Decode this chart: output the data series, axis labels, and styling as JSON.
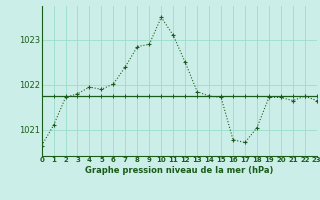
{
  "title": "Graphe pression niveau de la mer (hPa)",
  "background_color": "#cceee8",
  "grid_color": "#99ddcc",
  "line_color": "#1a5c1a",
  "x_values": [
    0,
    1,
    2,
    3,
    4,
    5,
    6,
    7,
    8,
    9,
    10,
    11,
    12,
    13,
    14,
    15,
    16,
    17,
    18,
    19,
    20,
    21,
    22,
    23
  ],
  "line1_values": [
    1020.65,
    1021.1,
    1021.72,
    1021.8,
    1021.95,
    1021.9,
    1022.02,
    1022.4,
    1022.85,
    1022.9,
    1023.5,
    1023.1,
    1022.5,
    1021.85,
    1021.75,
    1021.72,
    1020.78,
    1020.72,
    1021.05,
    1021.72,
    1021.72,
    1021.65,
    1021.75,
    1021.65
  ],
  "line2_values": [
    1021.75,
    1021.75,
    1021.75,
    1021.75,
    1021.75,
    1021.75,
    1021.75,
    1021.75,
    1021.75,
    1021.75,
    1021.75,
    1021.75,
    1021.75,
    1021.75,
    1021.75,
    1021.75,
    1021.75,
    1021.75,
    1021.75,
    1021.75,
    1021.75,
    1021.75,
    1021.75,
    1021.75
  ],
  "ylim": [
    1020.42,
    1023.75
  ],
  "yticks": [
    1021,
    1022,
    1023
  ],
  "xlim": [
    0,
    23
  ],
  "xticks": [
    0,
    1,
    2,
    3,
    4,
    5,
    6,
    7,
    8,
    9,
    10,
    11,
    12,
    13,
    14,
    15,
    16,
    17,
    18,
    19,
    20,
    21,
    22,
    23
  ],
  "xlabel_fontsize": 6.0,
  "ytick_fontsize": 6.0,
  "xtick_fontsize": 5.0
}
